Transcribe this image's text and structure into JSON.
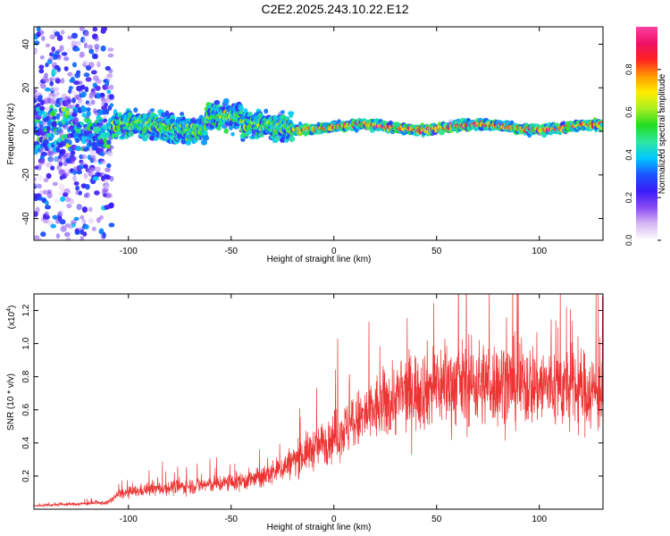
{
  "title": "C2E2.2025.243.10.22.E12",
  "colors": {
    "snr_line": "#ee3333",
    "colorbar_stops": [
      "#ffffff",
      "#d8b8f4",
      "#8a4cf4",
      "#3a1cf8",
      "#1a55ff",
      "#00c8ff",
      "#2ee6a0",
      "#22dd22",
      "#a8ee22",
      "#ffee00",
      "#ff9900",
      "#ff2222",
      "#ee1166",
      "#ff40a0"
    ]
  },
  "chart_data": [
    {
      "type": "heatmap",
      "xlabel": "Height of straight line (km)",
      "ylabel": "Frequency (Hz)",
      "xlim": [
        -146,
        131
      ],
      "ylim": [
        -50,
        48
      ],
      "x_ticks": [
        "-100",
        "-50",
        "0",
        "50",
        "100"
      ],
      "y_ticks": [
        "-40",
        "-20",
        "0",
        "20",
        "40"
      ],
      "colorbar": {
        "label": "Normalized spectral amplitude",
        "range": [
          0,
          1
        ],
        "ticks": [
          "0.0",
          "0.2",
          "0.4",
          "0.6",
          "0.8"
        ]
      },
      "description_of_signal": "band centred near 0 Hz, broad scatter below -110 km, narrow high-amplitude band above -20 km"
    },
    {
      "type": "line",
      "xlabel": "Height of straight line (km)",
      "ylabel": "SNR (10 * v/v)",
      "multiplier": "(x10",
      "multiplier_exp": "4",
      "multiplier_close": ")",
      "xlim": [
        -146,
        131
      ],
      "ylim": [
        0,
        1.3
      ],
      "x_ticks": [
        "-100",
        "-50",
        "0",
        "50",
        "100"
      ],
      "y_ticks": [
        "0.2",
        "0.4",
        "0.6",
        "0.8",
        "1.0",
        "1.2"
      ],
      "series": [
        {
          "trend_x": [
            -146,
            -110,
            -105,
            -90,
            -70,
            -50,
            -35,
            -25,
            -15,
            -5,
            5,
            15,
            25,
            35,
            50,
            70,
            90,
            110,
            131
          ],
          "trend_y": [
            0.02,
            0.04,
            0.09,
            0.12,
            0.14,
            0.16,
            0.19,
            0.25,
            0.33,
            0.4,
            0.48,
            0.56,
            0.64,
            0.7,
            0.75,
            0.76,
            0.76,
            0.74,
            0.7
          ]
        }
      ]
    }
  ]
}
